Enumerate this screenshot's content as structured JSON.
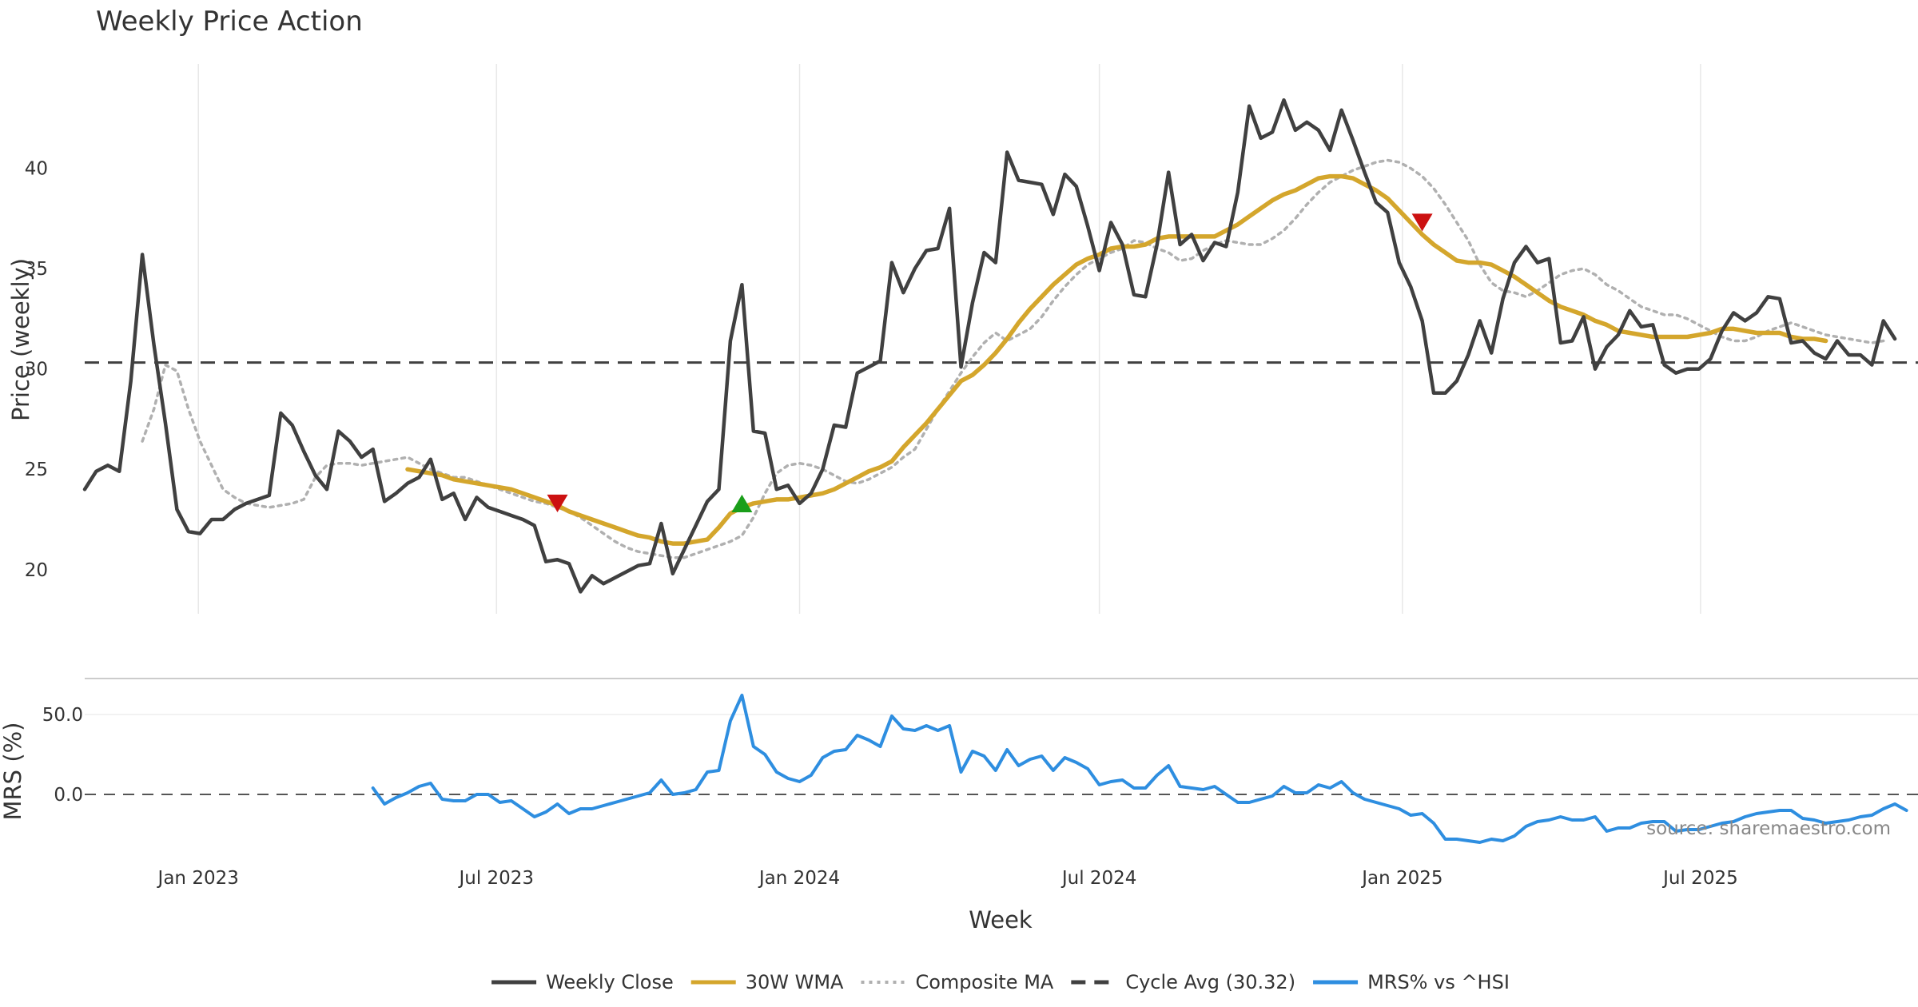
{
  "chart_data": [
    {
      "panel": "price",
      "type": "line",
      "title": "Weekly Price Action",
      "ylabel": "Price (weekly)",
      "xlabel": "Week",
      "x_range": [
        "2022-10-24",
        "2025-11-10"
      ],
      "x_ticks": [
        {
          "date": "2023-01-01",
          "label": "Jan 2023"
        },
        {
          "date": "2023-07-01",
          "label": "Jul 2023"
        },
        {
          "date": "2024-01-01",
          "label": "Jan 2024"
        },
        {
          "date": "2024-07-01",
          "label": "Jul 2024"
        },
        {
          "date": "2025-01-01",
          "label": "Jan 2025"
        },
        {
          "date": "2025-07-01",
          "label": "Jul 2025"
        }
      ],
      "ylim": [
        17.8,
        45.2
      ],
      "y_ticks": [
        20,
        25,
        30,
        35,
        40
      ],
      "grid": "vertical",
      "series": [
        {
          "name": "Weekly Close",
          "color": "#404040",
          "style": "solid",
          "start_date": "2022-10-24",
          "values": [
            24.0,
            24.9,
            25.2,
            24.9,
            29.4,
            35.7,
            31.2,
            27.3,
            23.0,
            21.9,
            21.8,
            22.5,
            22.5,
            23.0,
            23.3,
            23.5,
            23.7,
            27.8,
            27.2,
            25.9,
            24.7,
            24.0,
            26.9,
            26.4,
            25.6,
            26.0,
            23.4,
            23.8,
            24.3,
            24.6,
            25.5,
            23.5,
            23.8,
            22.5,
            23.6,
            23.1,
            22.9,
            22.7,
            22.5,
            22.2,
            20.4,
            20.5,
            20.3,
            18.9,
            19.7,
            19.3,
            19.6,
            19.9,
            20.2,
            20.3,
            22.3,
            19.8,
            21.0,
            22.2,
            23.4,
            24.0,
            31.4,
            34.2,
            26.9,
            26.8,
            24.0,
            24.2,
            23.3,
            23.8,
            25.0,
            27.2,
            27.1,
            29.8,
            30.1,
            30.4,
            35.3,
            33.8,
            35.0,
            35.9,
            36.0,
            38.0,
            30.1,
            33.3,
            35.8,
            35.3,
            40.8,
            39.4,
            39.3,
            39.2,
            37.7,
            39.7,
            39.1,
            37.1,
            34.9,
            37.3,
            36.2,
            33.7,
            33.6,
            36.2,
            39.8,
            36.2,
            36.7,
            35.4,
            36.3,
            36.1,
            38.8,
            43.1,
            41.5,
            41.8,
            43.4,
            41.9,
            42.3,
            41.9,
            40.9,
            42.9,
            41.4,
            39.8,
            38.3,
            37.8,
            35.3,
            34.1,
            32.4,
            28.8,
            28.8,
            29.4,
            30.7,
            32.4,
            30.8,
            33.5,
            35.3,
            36.1,
            35.3,
            35.5,
            31.3,
            31.4,
            32.6,
            30.0,
            31.1,
            31.7,
            32.9,
            32.1,
            32.2,
            30.2,
            29.8,
            30.0,
            30.0,
            30.5,
            31.9,
            32.8,
            32.4,
            32.8,
            33.6,
            33.5,
            31.3,
            31.4,
            30.8,
            30.5,
            31.4,
            30.7,
            30.7,
            30.2,
            32.4,
            31.5
          ]
        },
        {
          "name": "30W WMA",
          "color": "#d4a62c",
          "style": "solid",
          "start_date": "2023-05-08",
          "values": [
            25.0,
            24.9,
            24.8,
            24.7,
            24.5,
            24.4,
            24.3,
            24.2,
            24.1,
            24.0,
            23.8,
            23.6,
            23.4,
            23.2,
            22.9,
            22.7,
            22.5,
            22.3,
            22.1,
            21.9,
            21.7,
            21.6,
            21.4,
            21.3,
            21.3,
            21.4,
            21.5,
            22.1,
            22.8,
            23.1,
            23.3,
            23.4,
            23.5,
            23.5,
            23.6,
            23.7,
            23.8,
            24.0,
            24.3,
            24.6,
            24.9,
            25.1,
            25.4,
            26.1,
            26.7,
            27.3,
            28.0,
            28.7,
            29.4,
            29.7,
            30.2,
            30.8,
            31.5,
            32.3,
            33.0,
            33.6,
            34.2,
            34.7,
            35.2,
            35.5,
            35.7,
            36.0,
            36.1,
            36.1,
            36.2,
            36.5,
            36.6,
            36.6,
            36.6,
            36.6,
            36.6,
            36.9,
            37.2,
            37.6,
            38.0,
            38.4,
            38.7,
            38.9,
            39.2,
            39.5,
            39.6,
            39.6,
            39.5,
            39.2,
            38.9,
            38.5,
            37.9,
            37.3,
            36.7,
            36.2,
            35.8,
            35.4,
            35.3,
            35.3,
            35.2,
            34.9,
            34.6,
            34.2,
            33.8,
            33.4,
            33.1,
            32.9,
            32.7,
            32.4,
            32.2,
            31.9,
            31.8,
            31.7,
            31.6,
            31.6,
            31.6,
            31.6,
            31.7,
            31.8,
            32.0,
            32.0,
            31.9,
            31.8,
            31.8,
            31.8,
            31.6,
            31.5,
            31.5,
            31.4
          ]
        },
        {
          "name": "Composite MA",
          "color": "#b0b0b0",
          "style": "dotted",
          "start_date": "2022-11-28",
          "values": [
            26.4,
            28.0,
            30.2,
            29.9,
            28.0,
            26.4,
            25.2,
            24.0,
            23.6,
            23.3,
            23.2,
            23.1,
            23.2,
            23.3,
            23.5,
            24.6,
            25.2,
            25.3,
            25.3,
            25.2,
            25.3,
            25.4,
            25.5,
            25.6,
            25.3,
            25.0,
            24.8,
            24.6,
            24.6,
            24.4,
            24.2,
            24.0,
            23.8,
            23.6,
            23.4,
            23.3,
            23.1,
            22.9,
            22.6,
            22.2,
            21.8,
            21.4,
            21.1,
            20.9,
            20.8,
            20.7,
            20.6,
            20.6,
            20.8,
            21.0,
            21.2,
            21.4,
            21.7,
            22.6,
            23.8,
            24.8,
            25.2,
            25.3,
            25.2,
            25.0,
            24.7,
            24.4,
            24.3,
            24.5,
            24.8,
            25.1,
            25.6,
            26.0,
            27.0,
            28.0,
            28.9,
            29.8,
            30.6,
            31.3,
            31.8,
            31.4,
            31.7,
            32.0,
            32.6,
            33.4,
            34.1,
            34.7,
            35.2,
            35.5,
            35.8,
            36.0,
            36.4,
            36.3,
            36.0,
            35.8,
            35.4,
            35.5,
            35.9,
            36.2,
            36.4,
            36.3,
            36.2,
            36.2,
            36.5,
            36.9,
            37.5,
            38.2,
            38.8,
            39.3,
            39.6,
            39.9,
            40.1,
            40.3,
            40.4,
            40.3,
            40.0,
            39.6,
            39.0,
            38.2,
            37.3,
            36.4,
            35.2,
            34.3,
            33.9,
            33.8,
            33.6,
            33.9,
            34.3,
            34.7,
            34.9,
            35.0,
            34.7,
            34.2,
            33.9,
            33.5,
            33.1,
            32.9,
            32.7,
            32.7,
            32.5,
            32.2,
            31.9,
            31.6,
            31.4,
            31.4,
            31.6,
            31.9,
            32.1,
            32.3,
            32.1,
            31.9,
            31.7,
            31.6,
            31.5,
            31.4,
            31.3,
            31.4
          ]
        },
        {
          "name": "Cycle Avg (30.32)",
          "color": "#404040",
          "style": "dashed",
          "value": 30.32
        }
      ],
      "markers": [
        {
          "type": "sell",
          "date": "2023-08-07",
          "value": 23.3,
          "color": "#cc1111"
        },
        {
          "type": "buy",
          "date": "2023-11-27",
          "value": 23.3,
          "color": "#1a9e1a"
        },
        {
          "type": "sell",
          "date": "2025-01-13",
          "value": 37.3,
          "color": "#cc1111"
        }
      ]
    },
    {
      "panel": "mrs",
      "type": "line",
      "ylabel": "MRS (%)",
      "ylim": [
        -33,
        67
      ],
      "y_ticks": [
        {
          "value": 0,
          "label": "0.0"
        },
        {
          "value": 50,
          "label": "50.0"
        }
      ],
      "zero_line": "dashed",
      "series": [
        {
          "name": "MRS% vs ^HSI",
          "color": "#2e8ee0",
          "style": "solid",
          "start_date": "2023-04-17",
          "values": [
            4,
            -6,
            -2,
            1,
            5,
            7,
            -3,
            -4,
            -4,
            0,
            0,
            -5,
            -4,
            -9,
            -14,
            -11,
            -6,
            -12,
            -9,
            -9,
            -7,
            -5,
            -3,
            -1,
            1,
            9,
            0,
            1,
            3,
            14,
            15,
            46,
            62,
            30,
            25,
            14,
            10,
            8,
            12,
            23,
            27,
            28,
            37,
            34,
            30,
            49,
            41,
            40,
            43,
            40,
            43,
            14,
            27,
            24,
            15,
            28,
            18,
            22,
            24,
            15,
            23,
            20,
            16,
            6,
            8,
            9,
            4,
            4,
            12,
            18,
            5,
            4,
            3,
            5,
            0,
            -5,
            -5,
            -3,
            -1,
            5,
            1,
            1,
            6,
            4,
            8,
            1,
            -3,
            -5,
            -7,
            -9,
            -13,
            -12,
            -18,
            -28,
            -28,
            -29,
            -30,
            -28,
            -29,
            -26,
            -20,
            -17,
            -16,
            -14,
            -16,
            -16,
            -14,
            -23,
            -21,
            -21,
            -18,
            -17,
            -17,
            -23,
            -22,
            -22,
            -20,
            -18,
            -17,
            -14,
            -12,
            -11,
            -10,
            -10,
            -15,
            -16,
            -18,
            -17,
            -16,
            -14,
            -13,
            -9,
            -6,
            -10
          ]
        }
      ],
      "annotation": "source: sharemaestro.com"
    }
  ],
  "legend": {
    "placement": "bottom-center",
    "items": [
      {
        "label": "Weekly Close",
        "color": "#404040",
        "style": "solid"
      },
      {
        "label": "30W WMA",
        "color": "#d4a62c",
        "style": "solid"
      },
      {
        "label": "Composite MA",
        "color": "#b0b0b0",
        "style": "dotted"
      },
      {
        "label": "Cycle Avg (30.32)",
        "color": "#404040",
        "style": "dashed"
      },
      {
        "label": "MRS% vs ^HSI",
        "color": "#2e8ee0",
        "style": "solid"
      }
    ]
  }
}
